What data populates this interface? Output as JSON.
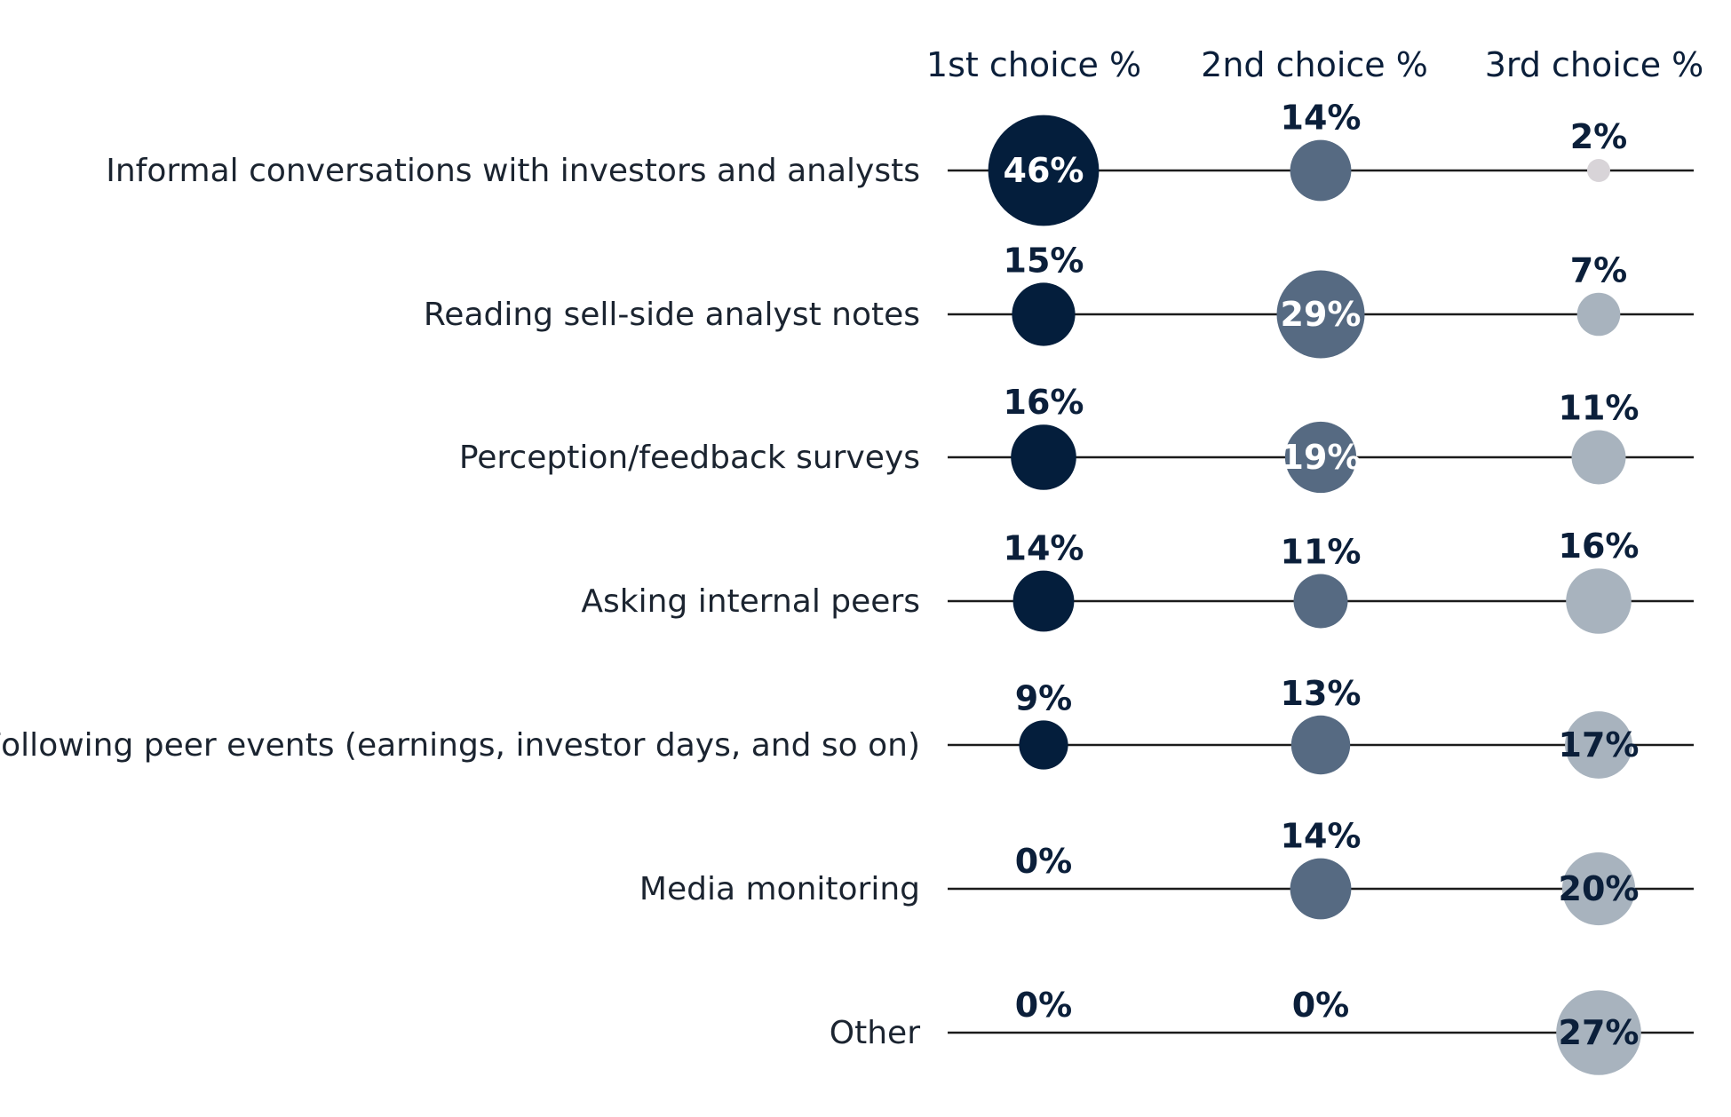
{
  "chart_data": {
    "type": "bubble",
    "columns": [
      "1st choice %",
      "2nd choice %",
      "3rd choice %"
    ],
    "categories": [
      "Informal conversations with investors and analysts",
      "Reading sell-side analyst notes",
      "Perception/feedback surveys",
      "Asking internal peers",
      "Following peer events (earnings, investor days, and so on)",
      "Media monitoring",
      "Other"
    ],
    "series": [
      {
        "values": [
          46,
          15,
          16,
          14,
          9,
          0,
          0
        ],
        "color": "#041e3c"
      },
      {
        "values": [
          14,
          29,
          19,
          11,
          13,
          14,
          0
        ],
        "color": "#566a82"
      },
      {
        "values": [
          2,
          7,
          11,
          16,
          17,
          20,
          27
        ],
        "color": "#a8b3be"
      }
    ],
    "value_labels": [
      [
        "46%",
        "14%",
        "2%"
      ],
      [
        "15%",
        "29%",
        "7%"
      ],
      [
        "16%",
        "19%",
        "11%"
      ],
      [
        "14%",
        "11%",
        "16%"
      ],
      [
        "9%",
        "13%",
        "17%"
      ],
      [
        "0%",
        "14%",
        "20%"
      ],
      [
        "0%",
        "0%",
        "27%"
      ]
    ],
    "small_bubble_color": "#d8d4d8",
    "line_color": "#1b1b1b",
    "label_dark_color": "#0b1f3a",
    "label_light_color": "#ffffff"
  }
}
